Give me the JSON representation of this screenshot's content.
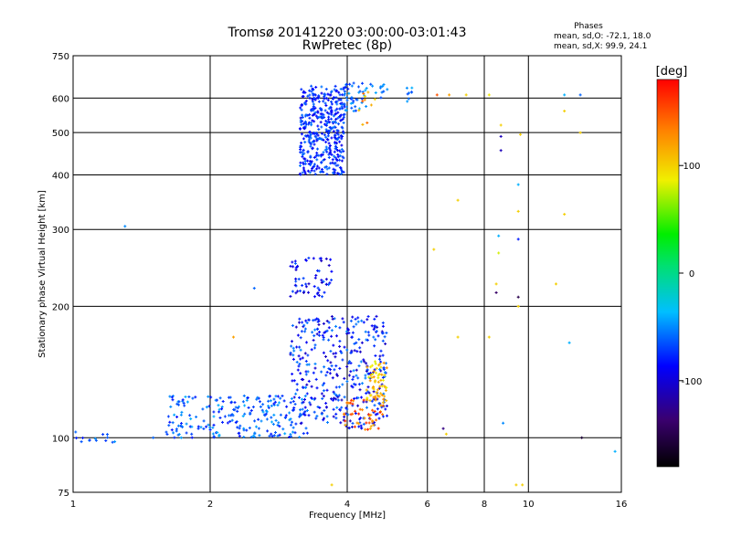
{
  "chart_data": {
    "type": "scatter",
    "title": "Tromsø 20141220 03:00:00-03:01:43",
    "subtitle": "RwPretec (8p)",
    "xlabel": "Frequency [MHz]",
    "ylabel": "Stationary phase Virtual Height [km]",
    "x_scale": "log",
    "y_scale": "log",
    "xlim": [
      1,
      16
    ],
    "ylim": [
      75,
      750
    ],
    "x_ticks": [
      1,
      2,
      4,
      6,
      8,
      10,
      16
    ],
    "y_ticks": [
      75,
      100,
      200,
      300,
      400,
      500,
      600,
      750
    ],
    "grid": true,
    "stats": {
      "heading": "Phases",
      "line_o": "mean, sd,O: -72.1, 18.0",
      "line_x": "mean, sd,X:  99.9, 24.1"
    },
    "colorbar": {
      "label": "[deg]",
      "min": -180,
      "max": 180,
      "ticks": [
        100,
        0,
        -100
      ]
    },
    "clusters": [
      {
        "f": [
          3.15,
          3.95
        ],
        "h": [
          400,
          640
        ],
        "phase": [
          -95,
          -55
        ],
        "n": 420
      },
      {
        "f": [
          3.9,
          4.4
        ],
        "h": [
          560,
          650
        ],
        "phase": [
          -80,
          -40
        ],
        "n": 40
      },
      {
        "f": [
          4.4,
          4.9
        ],
        "h": [
          600,
          650
        ],
        "phase": [
          -70,
          -40
        ],
        "n": 12
      },
      {
        "f": [
          4.2,
          4.7
        ],
        "h": [
          520,
          620
        ],
        "phase": [
          90,
          160
        ],
        "n": 10
      },
      {
        "f": [
          5.3,
          5.6
        ],
        "h": [
          570,
          640
        ],
        "phase": [
          -80,
          -40
        ],
        "n": 8
      },
      {
        "f": [
          3.0,
          3.7
        ],
        "h": [
          210,
          260
        ],
        "phase": [
          -110,
          -60
        ],
        "n": 60
      },
      {
        "f": [
          1.6,
          3.3
        ],
        "h": [
          100,
          125
        ],
        "phase": [
          -85,
          -40
        ],
        "n": 230
      },
      {
        "f": [
          3.0,
          4.9
        ],
        "h": [
          105,
          190
        ],
        "phase": [
          -110,
          -50
        ],
        "n": 380
      },
      {
        "f": [
          3.9,
          4.8
        ],
        "h": [
          104,
          122
        ],
        "phase": [
          110,
          170
        ],
        "n": 45
      },
      {
        "f": [
          4.4,
          4.9
        ],
        "h": [
          120,
          150
        ],
        "phase": [
          80,
          130
        ],
        "n": 60
      },
      {
        "f": [
          1.0,
          1.25
        ],
        "h": [
          97,
          104
        ],
        "phase": [
          -80,
          -40
        ],
        "n": 14
      }
    ],
    "points": [
      {
        "f": 1.3,
        "h": 305,
        "phase": -50
      },
      {
        "f": 1.5,
        "h": 100,
        "phase": -60
      },
      {
        "f": 2.5,
        "h": 220,
        "phase": -60
      },
      {
        "f": 2.25,
        "h": 170,
        "phase": 120
      },
      {
        "f": 6.3,
        "h": 610,
        "phase": 150
      },
      {
        "f": 6.7,
        "h": 610,
        "phase": 120
      },
      {
        "f": 7.3,
        "h": 610,
        "phase": 100
      },
      {
        "f": 8.2,
        "h": 610,
        "phase": 90
      },
      {
        "f": 8.7,
        "h": 490,
        "phase": -110
      },
      {
        "f": 8.7,
        "h": 455,
        "phase": -110
      },
      {
        "f": 8.7,
        "h": 520,
        "phase": 100
      },
      {
        "f": 9.6,
        "h": 495,
        "phase": 100
      },
      {
        "f": 9.5,
        "h": 380,
        "phase": -40
      },
      {
        "f": 9.5,
        "h": 330,
        "phase": 100
      },
      {
        "f": 9.5,
        "h": 285,
        "phase": -80
      },
      {
        "f": 8.6,
        "h": 290,
        "phase": -40
      },
      {
        "f": 8.6,
        "h": 265,
        "phase": 80
      },
      {
        "f": 8.5,
        "h": 215,
        "phase": -140
      },
      {
        "f": 8.5,
        "h": 225,
        "phase": 100
      },
      {
        "f": 9.5,
        "h": 210,
        "phase": -150
      },
      {
        "f": 9.5,
        "h": 200,
        "phase": 100
      },
      {
        "f": 12.0,
        "h": 610,
        "phase": -40
      },
      {
        "f": 12.0,
        "h": 560,
        "phase": 100
      },
      {
        "f": 13.0,
        "h": 610,
        "phase": -60
      },
      {
        "f": 13.0,
        "h": 500,
        "phase": 100
      },
      {
        "f": 12.0,
        "h": 325,
        "phase": 100
      },
      {
        "f": 11.5,
        "h": 225,
        "phase": 100
      },
      {
        "f": 12.3,
        "h": 165,
        "phase": -40
      },
      {
        "f": 13.1,
        "h": 100,
        "phase": -160
      },
      {
        "f": 15.5,
        "h": 93,
        "phase": -40
      },
      {
        "f": 7.0,
        "h": 350,
        "phase": 100
      },
      {
        "f": 7.0,
        "h": 170,
        "phase": 100
      },
      {
        "f": 6.5,
        "h": 105,
        "phase": -130
      },
      {
        "f": 6.6,
        "h": 102,
        "phase": 100
      },
      {
        "f": 8.8,
        "h": 108,
        "phase": -50
      },
      {
        "f": 9.4,
        "h": 78,
        "phase": 100
      },
      {
        "f": 9.7,
        "h": 78,
        "phase": 100
      },
      {
        "f": 3.7,
        "h": 78,
        "phase": 100
      },
      {
        "f": 6.2,
        "h": 270,
        "phase": 100
      },
      {
        "f": 8.2,
        "h": 170,
        "phase": 100
      }
    ]
  }
}
